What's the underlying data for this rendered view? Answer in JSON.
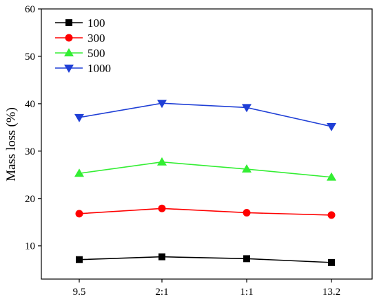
{
  "chart_data": {
    "type": "line",
    "title": "",
    "xlabel": "",
    "ylabel": "Mass loss (%)",
    "categories": [
      "9.5",
      "2:1",
      "1:1",
      "13.2"
    ],
    "ylim": [
      3,
      60
    ],
    "yticks": [
      10,
      20,
      30,
      40,
      50,
      60
    ],
    "grid": false,
    "legend_position": "top-left",
    "series": [
      {
        "name": "100",
        "color": "#000000",
        "marker": "square",
        "values": [
          7.1,
          7.7,
          7.3,
          6.5
        ]
      },
      {
        "name": "300",
        "color": "#ff0000",
        "marker": "circle",
        "values": [
          16.8,
          17.9,
          17.0,
          16.5
        ]
      },
      {
        "name": "500",
        "color": "#33ee33",
        "marker": "triangle-up",
        "values": [
          25.3,
          27.7,
          26.2,
          24.5
        ]
      },
      {
        "name": "1000",
        "color": "#1f3fd6",
        "marker": "triangle-down",
        "values": [
          37.1,
          40.1,
          39.2,
          35.2
        ]
      }
    ]
  }
}
